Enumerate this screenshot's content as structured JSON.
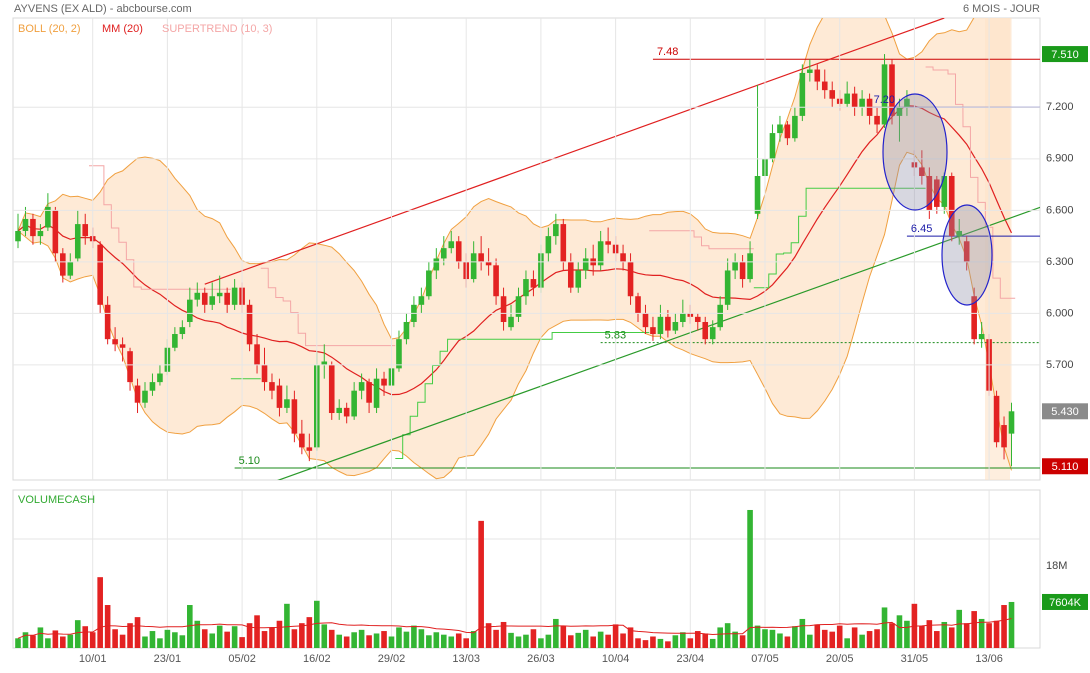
{
  "header": {
    "title": "AYVENS (EX ALD) - abcbourse.com",
    "period": "6 MOIS - JOUR"
  },
  "chart_data": [
    {
      "type": "candlestick",
      "categories": [
        null,
        null,
        null,
        null,
        null,
        null,
        null,
        null,
        null,
        null,
        "10/01",
        null,
        null,
        null,
        null,
        null,
        null,
        null,
        null,
        null,
        "23/01",
        null,
        null,
        null,
        null,
        null,
        null,
        null,
        null,
        null,
        "05/02",
        null,
        null,
        null,
        null,
        null,
        null,
        null,
        null,
        null,
        "16/02",
        null,
        null,
        null,
        null,
        null,
        null,
        null,
        null,
        null,
        "29/02",
        null,
        null,
        null,
        null,
        null,
        null,
        null,
        null,
        null,
        "13/03",
        null,
        null,
        null,
        null,
        null,
        null,
        null,
        null,
        null,
        "26/03",
        null,
        null,
        null,
        null,
        null,
        null,
        null,
        null,
        null,
        "10/04",
        null,
        null,
        null,
        null,
        null,
        null,
        null,
        null,
        null,
        "23/04",
        null,
        null,
        null,
        null,
        null,
        null,
        null,
        null,
        null,
        "07/05",
        null,
        null,
        null,
        null,
        null,
        null,
        null,
        null,
        null,
        "20/05",
        null,
        null,
        null,
        null,
        null,
        null,
        null,
        null,
        null,
        "31/05",
        null,
        null,
        null,
        null,
        null,
        null,
        null,
        null,
        null,
        "13/06",
        null,
        null,
        null
      ],
      "ohlc": [
        [
          6.42,
          6.58,
          6.38,
          6.48
        ],
        [
          6.48,
          6.62,
          6.45,
          6.55
        ],
        [
          6.55,
          6.58,
          6.4,
          6.45
        ],
        [
          6.45,
          6.52,
          6.4,
          6.48
        ],
        [
          6.5,
          6.7,
          6.48,
          6.62
        ],
        [
          6.6,
          6.62,
          6.3,
          6.35
        ],
        [
          6.35,
          6.38,
          6.18,
          6.22
        ],
        [
          6.22,
          6.35,
          6.2,
          6.3
        ],
        [
          6.32,
          6.6,
          6.3,
          6.52
        ],
        [
          6.52,
          6.58,
          6.4,
          6.45
        ],
        [
          6.45,
          6.5,
          6.38,
          6.42
        ],
        [
          6.4,
          6.42,
          6.0,
          6.05
        ],
        [
          6.05,
          6.1,
          5.82,
          5.85
        ],
        [
          5.85,
          5.92,
          5.78,
          5.82
        ],
        [
          5.82,
          5.86,
          5.72,
          5.8
        ],
        [
          5.78,
          5.8,
          5.55,
          5.6
        ],
        [
          5.58,
          5.62,
          5.42,
          5.48
        ],
        [
          5.48,
          5.6,
          5.45,
          5.55
        ],
        [
          5.55,
          5.65,
          5.52,
          5.6
        ],
        [
          5.6,
          5.7,
          5.58,
          5.65
        ],
        [
          5.66,
          5.85,
          5.64,
          5.8
        ],
        [
          5.8,
          5.92,
          5.78,
          5.88
        ],
        [
          5.88,
          5.96,
          5.85,
          5.92
        ],
        [
          5.95,
          6.15,
          5.92,
          6.08
        ],
        [
          6.08,
          6.18,
          6.04,
          6.12
        ],
        [
          6.12,
          6.15,
          6.0,
          6.05
        ],
        [
          6.05,
          6.18,
          6.02,
          6.1
        ],
        [
          6.1,
          6.22,
          6.06,
          6.12
        ],
        [
          6.12,
          6.15,
          6.0,
          6.05
        ],
        [
          6.05,
          6.2,
          6.02,
          6.15
        ],
        [
          6.15,
          6.18,
          6.0,
          6.05
        ],
        [
          6.05,
          6.08,
          5.78,
          5.82
        ],
        [
          5.82,
          5.88,
          5.65,
          5.7
        ],
        [
          5.7,
          5.8,
          5.55,
          5.6
        ],
        [
          5.6,
          5.65,
          5.5,
          5.55
        ],
        [
          5.58,
          5.62,
          5.4,
          5.45
        ],
        [
          5.45,
          5.58,
          5.42,
          5.5
        ],
        [
          5.5,
          5.55,
          5.25,
          5.3
        ],
        [
          5.3,
          5.38,
          5.18,
          5.22
        ],
        [
          5.22,
          5.3,
          5.14,
          5.2
        ],
        [
          5.22,
          5.78,
          5.2,
          5.7
        ],
        [
          5.7,
          5.82,
          5.62,
          5.72
        ],
        [
          5.7,
          5.72,
          5.38,
          5.42
        ],
        [
          5.42,
          5.5,
          5.38,
          5.45
        ],
        [
          5.45,
          5.48,
          5.36,
          5.4
        ],
        [
          5.4,
          5.6,
          5.38,
          5.55
        ],
        [
          5.55,
          5.65,
          5.5,
          5.6
        ],
        [
          5.6,
          5.62,
          5.42,
          5.48
        ],
        [
          5.45,
          5.68,
          5.42,
          5.62
        ],
        [
          5.62,
          5.66,
          5.52,
          5.58
        ],
        [
          5.58,
          5.72,
          5.55,
          5.68
        ],
        [
          5.68,
          5.9,
          5.66,
          5.85
        ],
        [
          5.85,
          6.0,
          5.82,
          5.95
        ],
        [
          5.95,
          6.1,
          5.92,
          6.05
        ],
        [
          6.05,
          6.15,
          6.0,
          6.1
        ],
        [
          6.1,
          6.3,
          6.08,
          6.25
        ],
        [
          6.25,
          6.38,
          6.2,
          6.32
        ],
        [
          6.32,
          6.45,
          6.28,
          6.38
        ],
        [
          6.38,
          6.48,
          6.35,
          6.42
        ],
        [
          6.42,
          6.45,
          6.26,
          6.3
        ],
        [
          6.3,
          6.35,
          6.15,
          6.2
        ],
        [
          6.2,
          6.42,
          6.18,
          6.35
        ],
        [
          6.35,
          6.45,
          6.25,
          6.3
        ],
        [
          6.3,
          6.38,
          6.22,
          6.28
        ],
        [
          6.28,
          6.32,
          6.05,
          6.1
        ],
        [
          6.1,
          6.15,
          5.9,
          5.95
        ],
        [
          5.92,
          6.05,
          5.9,
          5.98
        ],
        [
          5.98,
          6.15,
          5.95,
          6.1
        ],
        [
          6.1,
          6.25,
          6.05,
          6.2
        ],
        [
          6.2,
          6.25,
          6.1,
          6.15
        ],
        [
          6.15,
          6.4,
          6.12,
          6.35
        ],
        [
          6.35,
          6.5,
          6.3,
          6.45
        ],
        [
          6.45,
          6.58,
          6.4,
          6.52
        ],
        [
          6.52,
          6.55,
          6.25,
          6.3
        ],
        [
          6.3,
          6.35,
          6.12,
          6.15
        ],
        [
          6.15,
          6.3,
          6.12,
          6.25
        ],
        [
          6.25,
          6.38,
          6.2,
          6.32
        ],
        [
          6.32,
          6.4,
          6.22,
          6.28
        ],
        [
          6.28,
          6.48,
          6.25,
          6.42
        ],
        [
          6.42,
          6.5,
          6.35,
          6.4
        ],
        [
          6.4,
          6.45,
          6.3,
          6.35
        ],
        [
          6.35,
          6.4,
          6.25,
          6.3
        ],
        [
          6.3,
          6.35,
          6.05,
          6.1
        ],
        [
          6.1,
          6.12,
          5.95,
          6.0
        ],
        [
          6.0,
          6.05,
          5.88,
          5.92
        ],
        [
          5.92,
          5.98,
          5.84,
          5.88
        ],
        [
          5.88,
          6.05,
          5.85,
          5.98
        ],
        [
          5.98,
          6.02,
          5.86,
          5.9
        ],
        [
          5.9,
          6.0,
          5.88,
          5.95
        ],
        [
          5.95,
          6.08,
          5.92,
          6.0
        ],
        [
          6.0,
          6.05,
          5.94,
          5.98
        ],
        [
          5.98,
          6.0,
          5.9,
          5.95
        ],
        [
          5.95,
          5.98,
          5.82,
          5.85
        ],
        [
          5.85,
          5.96,
          5.82,
          5.92
        ],
        [
          5.92,
          6.1,
          5.9,
          6.05
        ],
        [
          6.05,
          6.32,
          6.02,
          6.25
        ],
        [
          6.25,
          6.35,
          6.2,
          6.3
        ],
        [
          6.3,
          6.34,
          6.15,
          6.2
        ],
        [
          6.2,
          6.42,
          6.18,
          6.35
        ],
        [
          6.58,
          7.33,
          6.55,
          6.8
        ],
        [
          6.8,
          6.95,
          6.75,
          6.9
        ],
        [
          6.9,
          7.1,
          6.88,
          7.05
        ],
        [
          7.05,
          7.15,
          7.0,
          7.1
        ],
        [
          7.1,
          7.12,
          6.98,
          7.02
        ],
        [
          7.02,
          7.2,
          7.0,
          7.15
        ],
        [
          7.15,
          7.45,
          7.12,
          7.4
        ],
        [
          7.4,
          7.48,
          7.35,
          7.42
        ],
        [
          7.42,
          7.45,
          7.3,
          7.35
        ],
        [
          7.35,
          7.42,
          7.25,
          7.3
        ],
        [
          7.3,
          7.35,
          7.2,
          7.25
        ],
        [
          7.25,
          7.3,
          7.18,
          7.22
        ],
        [
          7.22,
          7.35,
          7.2,
          7.28
        ],
        [
          7.28,
          7.32,
          7.15,
          7.2
        ],
        [
          7.2,
          7.3,
          7.15,
          7.25
        ],
        [
          7.25,
          7.28,
          7.1,
          7.15
        ],
        [
          7.15,
          7.2,
          7.05,
          7.1
        ],
        [
          7.1,
          7.51,
          7.08,
          7.45
        ],
        [
          7.45,
          7.48,
          7.1,
          7.15
        ],
        [
          7.15,
          7.25,
          7.0,
          7.2
        ],
        [
          7.2,
          7.3,
          7.15,
          7.25
        ],
        [
          6.88,
          6.95,
          6.8,
          6.85
        ],
        [
          6.85,
          6.95,
          6.75,
          6.8
        ],
        [
          6.8,
          6.85,
          6.55,
          6.6
        ],
        [
          6.78,
          6.8,
          6.58,
          6.62
        ],
        [
          6.62,
          6.82,
          6.58,
          6.8
        ],
        [
          6.8,
          6.82,
          6.42,
          6.45
        ],
        [
          6.45,
          6.55,
          6.4,
          6.48
        ],
        [
          6.42,
          6.45,
          6.25,
          6.3
        ],
        [
          6.1,
          6.15,
          5.82,
          5.85
        ],
        [
          5.85,
          5.95,
          5.8,
          5.88
        ],
        [
          5.85,
          5.88,
          5.52,
          5.55
        ],
        [
          5.52,
          5.55,
          5.22,
          5.25
        ],
        [
          5.35,
          5.4,
          5.15,
          5.22
        ],
        [
          5.3,
          5.48,
          5.11,
          5.43
        ]
      ],
      "up_color": "#33b533",
      "down_color": "#e32222",
      "ylim": [
        5.03,
        7.72
      ],
      "yticks": [
        {
          "value": 7.2,
          "label": "7.200"
        },
        {
          "value": 6.9,
          "label": "6.900"
        },
        {
          "value": 6.6,
          "label": "6.600"
        },
        {
          "value": 6.3,
          "label": "6.300"
        },
        {
          "value": 6.0,
          "label": "6.000"
        },
        {
          "value": 5.7,
          "label": "5.700"
        }
      ],
      "grid": true,
      "indicators": [
        {
          "name": "BOLL (20, 2)",
          "kind": "bollinger",
          "period": 20,
          "width": 2,
          "color": "#f0a040"
        },
        {
          "name": "MM (20)",
          "kind": "ma",
          "period": 20,
          "color": "#e02020"
        },
        {
          "name": "SUPERTREND (10, 3)",
          "kind": "supertrend",
          "period": 10,
          "multiplier": 3,
          "color": "#f4a6a6",
          "up_color": "#44cc44"
        }
      ],
      "levels": [
        {
          "value": 7.48,
          "label": "7.48",
          "color": "#cc0000",
          "start": 85
        },
        {
          "value": 7.2,
          "label": "7.20",
          "color": "#1a1aa8",
          "start": 114
        },
        {
          "value": 6.45,
          "label": "6.45",
          "color": "#1a1aa8",
          "start": 119
        },
        {
          "value": 5.83,
          "label": "5.83",
          "color": "#1a8a1a",
          "start": 78,
          "dashed": true
        },
        {
          "value": 5.1,
          "label": "5.10",
          "color": "#1a8a1a",
          "start": 29
        }
      ],
      "trendlines": [
        {
          "color": "#e02020",
          "points": [
            [
              25,
              6.17
            ],
            [
              124,
              7.72
            ]
          ]
        },
        {
          "color": "#2a9a2a",
          "points": [
            [
              33,
              5.0
            ],
            [
              137,
              6.62
            ]
          ]
        }
      ],
      "markers": [
        {
          "value": 7.51,
          "label": "7.510",
          "color": "#1a9a1a"
        },
        {
          "value": 5.43,
          "label": "5.430",
          "color": "#8a8a8a"
        },
        {
          "value": 5.11,
          "label": "5.110",
          "color": "#cc0000"
        }
      ]
    },
    {
      "type": "bar",
      "title": "VOLUMECASH",
      "values": [
        1.6,
        2.6,
        2.1,
        3.4,
        1.6,
        2.9,
        1.9,
        2.2,
        4.6,
        3.6,
        2.6,
        11.7,
        7.1,
        3.1,
        2.2,
        4.1,
        5.1,
        1.9,
        2.8,
        1.6,
        3.0,
        2.6,
        2.1,
        7.1,
        4.5,
        3.1,
        2.4,
        3.7,
        2.7,
        3.6,
        1.8,
        4.1,
        5.4,
        2.8,
        3.4,
        4.5,
        7.3,
        3.1,
        4.1,
        5.1,
        7.8,
        3.9,
        3.0,
        2.2,
        1.9,
        2.6,
        3.0,
        2.1,
        2.4,
        2.8,
        1.9,
        3.4,
        2.7,
        3.7,
        3.1,
        2.1,
        2.6,
        2.2,
        1.9,
        2.4,
        1.6,
        2.8,
        21.0,
        4.1,
        3.0,
        4.3,
        2.5,
        1.9,
        2.2,
        3.1,
        1.6,
        2.2,
        4.8,
        3.7,
        2.1,
        2.5,
        3.0,
        1.9,
        2.7,
        2.2,
        3.9,
        2.4,
        3.4,
        1.6,
        1.3,
        1.9,
        1.5,
        1.1,
        2.1,
        2.6,
        1.6,
        2.8,
        2.4,
        1.5,
        3.4,
        4.1,
        2.7,
        2.1,
        22.8,
        3.7,
        3.1,
        3.0,
        2.4,
        1.9,
        3.6,
        4.8,
        2.2,
        3.9,
        3.0,
        2.7,
        3.7,
        1.6,
        3.4,
        2.2,
        2.8,
        3.1,
        6.7,
        4.1,
        5.4,
        4.5,
        7.3,
        3.7,
        4.6,
        2.8,
        4.3,
        3.4,
        6.3,
        4.1,
        6.1,
        4.8,
        4.1,
        4.5,
        7.1,
        7.604
      ],
      "ylim": [
        0,
        26.1
      ],
      "yticks": [
        {
          "value": 18,
          "label": "18M"
        }
      ],
      "line_color": "#e02020",
      "markers": [
        {
          "value": 7.604,
          "label": "7604K",
          "color": "#1a9a1a"
        }
      ]
    }
  ]
}
